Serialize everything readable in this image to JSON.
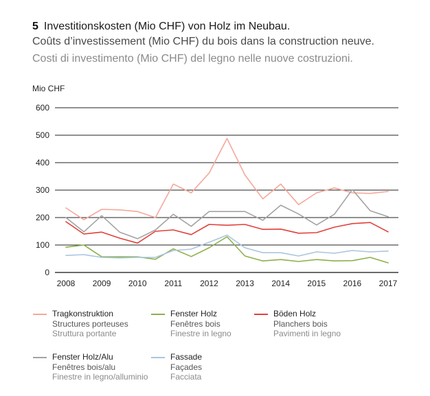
{
  "header": {
    "number": "5",
    "title_de": "Investitionskosten (Mio CHF) von Holz im Neubau.",
    "title_fr": "Coûts d’investissement (Mio CHF) du bois dans la construction neuve.",
    "title_it": "Costi di investimento (Mio CHF) del legno nelle nuove costruzioni."
  },
  "legend": [
    {
      "de": "Tragkonstruktion",
      "fr": "Structures porteuses",
      "it": "Struttura portante"
    },
    {
      "de": "Fenster Holz",
      "fr": "Fenêtres bois",
      "it": "Finestre in legno"
    },
    {
      "de": "Böden Holz",
      "fr": "Planchers bois",
      "it": "Pavimenti in legno"
    },
    {
      "de": "Fenster Holz/Alu",
      "fr": "Fenêtres bois/alu",
      "it": "Finestre in legno/alluminio"
    },
    {
      "de": "Fassade",
      "fr": "Façades",
      "it": "Facciata"
    }
  ],
  "chart_data": {
    "type": "line",
    "ylabel": "Mio CHF",
    "ylim": [
      0,
      600
    ],
    "yticks": [
      0,
      100,
      200,
      300,
      400,
      500,
      600
    ],
    "xticks": [
      "2008",
      "2009",
      "2010",
      "2011",
      "2012",
      "2013",
      "2014",
      "2015",
      "2016",
      "2017"
    ],
    "x": [
      2008.0,
      2008.5,
      2009.0,
      2009.5,
      2010.0,
      2010.5,
      2011.0,
      2011.5,
      2012.0,
      2012.5,
      2013.0,
      2013.5,
      2014.0,
      2014.5,
      2015.0,
      2015.5,
      2016.0,
      2016.5,
      2017.0
    ],
    "grid": "horizontal",
    "series": [
      {
        "name": "Tragkonstruktion",
        "color": "#f4a89a",
        "values": [
          235,
          192,
          230,
          228,
          222,
          200,
          322,
          290,
          362,
          488,
          355,
          268,
          322,
          247,
          290,
          308,
          290,
          288,
          295
        ]
      },
      {
        "name": "Fenster Holz",
        "color": "#8db04a",
        "values": [
          92,
          100,
          57,
          57,
          57,
          48,
          86,
          58,
          90,
          130,
          60,
          42,
          47,
          40,
          47,
          42,
          43,
          55,
          35
        ]
      },
      {
        "name": "Böden Holz",
        "color": "#e0413a",
        "values": [
          185,
          140,
          147,
          125,
          107,
          150,
          155,
          138,
          175,
          172,
          175,
          157,
          158,
          143,
          145,
          165,
          178,
          182,
          148
        ]
      },
      {
        "name": "Fenster Holz/Alu",
        "color": "#a3a3a3",
        "values": [
          200,
          148,
          207,
          147,
          123,
          155,
          212,
          168,
          222,
          222,
          222,
          190,
          245,
          213,
          173,
          212,
          302,
          225,
          203
        ]
      },
      {
        "name": "Fassade",
        "color": "#a9c5df",
        "values": [
          62,
          65,
          55,
          53,
          55,
          55,
          80,
          85,
          110,
          136,
          90,
          72,
          72,
          60,
          75,
          70,
          80,
          75,
          78
        ]
      }
    ]
  }
}
